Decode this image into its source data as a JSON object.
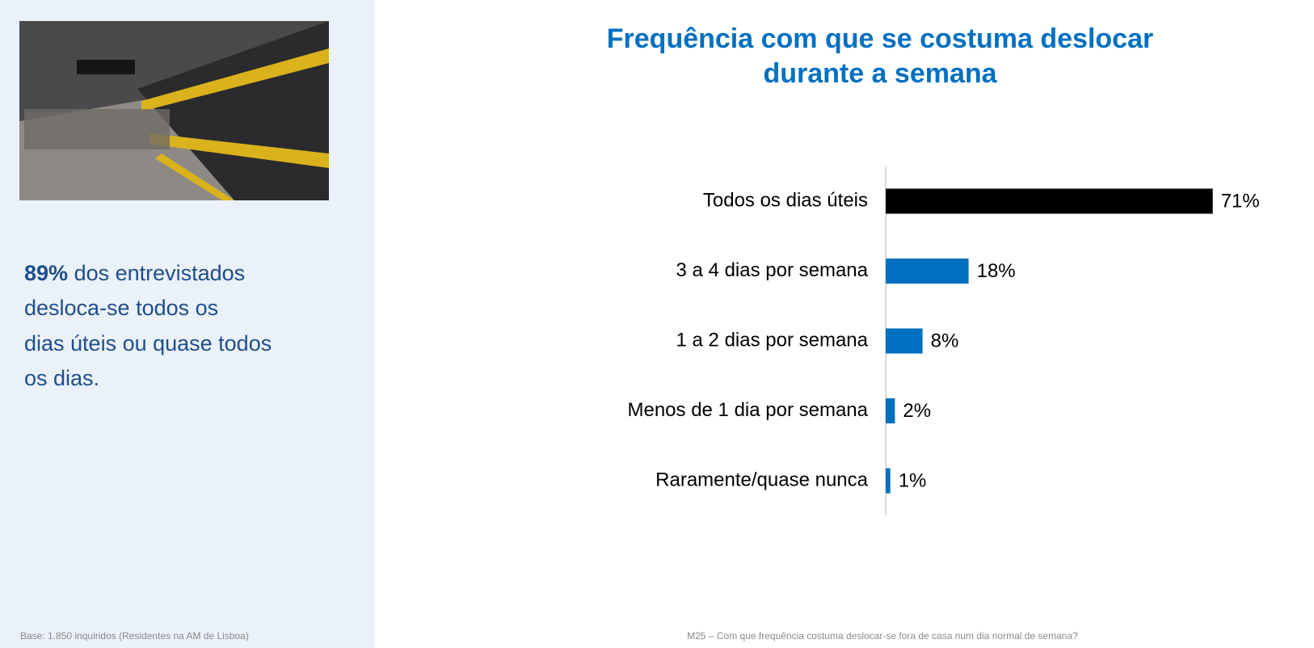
{
  "sidebar": {
    "highlight": "89%",
    "lines": [
      "dos entrevistados",
      "desloca-se todos os",
      "dias úteis ou quase todos",
      "os dias."
    ],
    "base_note": "Base: 1.850 inquiridos (Residentes na AM de Lisboa)"
  },
  "chart_data": {
    "type": "bar",
    "orientation": "horizontal",
    "title": [
      "Frequência com que se costuma deslocar",
      "durante a semana"
    ],
    "categories": [
      "Todos os dias úteis",
      "3 a 4 dias por semana",
      "1 a 2 dias por semana",
      "Menos de 1 dia por semana",
      "Raramente/quase nunca"
    ],
    "values": [
      71,
      18,
      8,
      2,
      1
    ],
    "value_labels": [
      "71%",
      "18%",
      "8%",
      "2%",
      "1%"
    ],
    "colors": [
      "#000000",
      "#0070c0",
      "#0070c0",
      "#0070c0",
      "#0070c0"
    ],
    "note": "M25 – Com que frequência costuma deslocar-se fora de casa num dia normal de semana?"
  }
}
